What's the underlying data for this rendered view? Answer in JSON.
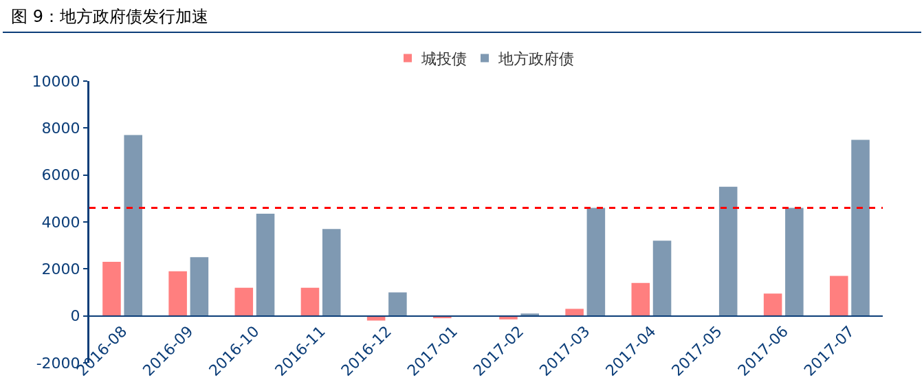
{
  "chart_data": {
    "type": "bar",
    "title": "图 9：地方政府债发行加速",
    "categories": [
      "2016-08",
      "2016-09",
      "2016-10",
      "2016-11",
      "2016-12",
      "2017-01",
      "2017-02",
      "2017-03",
      "2017-04",
      "2017-05",
      "2017-06",
      "2017-07"
    ],
    "series": [
      {
        "name": "城投债",
        "color": "#ff7f7f",
        "values": [
          2300,
          1900,
          1200,
          1200,
          -200,
          -100,
          -150,
          300,
          1400,
          0,
          950,
          1700
        ]
      },
      {
        "name": "地方政府债",
        "color": "#7f99b2",
        "values": [
          7700,
          2500,
          4350,
          3700,
          1000,
          0,
          100,
          4600,
          3200,
          5500,
          4600,
          7500
        ]
      }
    ],
    "ylim": [
      -2000,
      10000
    ],
    "yticks": [
      -2000,
      0,
      2000,
      4000,
      6000,
      8000,
      10000
    ],
    "ref_lines": [
      {
        "axis": "y",
        "value": 4600,
        "color": "#ff0000",
        "line_style": "dashed"
      }
    ],
    "grid": false,
    "legend": "top"
  }
}
